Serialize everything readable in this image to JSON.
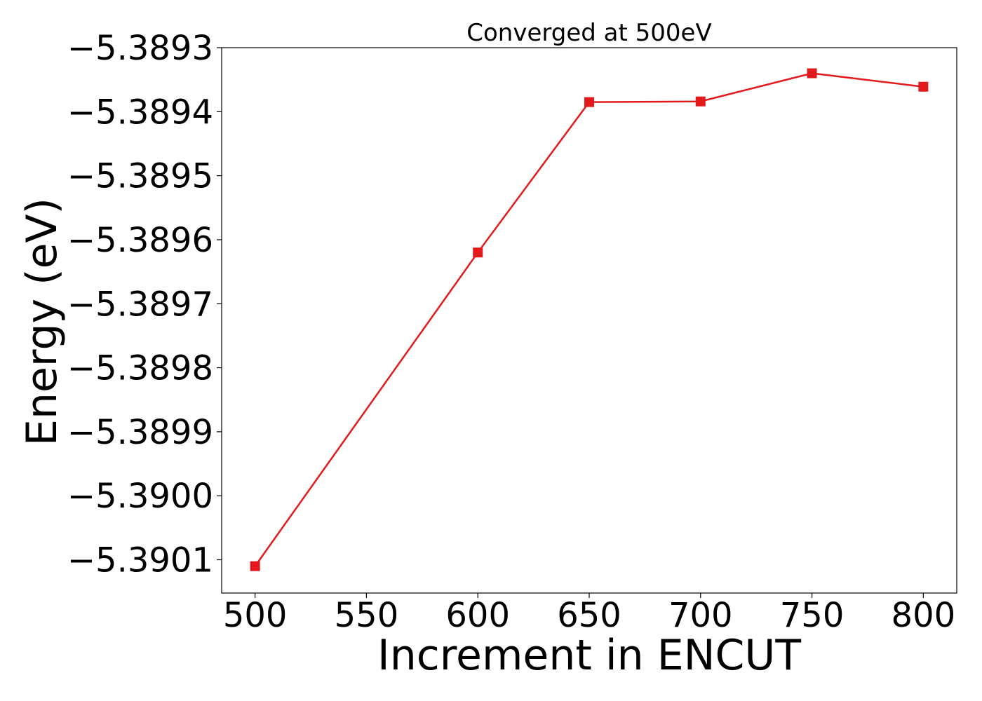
{
  "chart_data": {
    "type": "line",
    "title": "Converged at 500eV",
    "xlabel": "Increment in ENCUT",
    "ylabel": "Energy (eV)",
    "x": [
      500,
      600,
      650,
      700,
      750,
      800
    ],
    "series": [
      {
        "values": [
          -5.39011,
          -5.38962,
          -5.389385,
          -5.389384,
          -5.38934,
          -5.389361
        ],
        "color": "#e31a1c",
        "marker": "square"
      }
    ],
    "xticks": [
      500,
      550,
      600,
      650,
      700,
      750,
      800
    ],
    "xtick_labels": [
      "500",
      "550",
      "600",
      "650",
      "700",
      "750",
      "800"
    ],
    "yticks": [
      -5.3893,
      -5.3894,
      -5.3895,
      -5.3896,
      -5.3897,
      -5.3898,
      -5.3899,
      -5.39,
      -5.3901
    ],
    "ytick_labels": [
      "−5.3893",
      "−5.3894",
      "−5.3895",
      "−5.3896",
      "−5.3897",
      "−5.3898",
      "−5.3899",
      "−5.3900",
      "−5.3901"
    ],
    "xlim": [
      485,
      815
    ],
    "ylim": [
      -5.390152,
      -5.3893
    ],
    "grid": false,
    "legend": "none"
  }
}
